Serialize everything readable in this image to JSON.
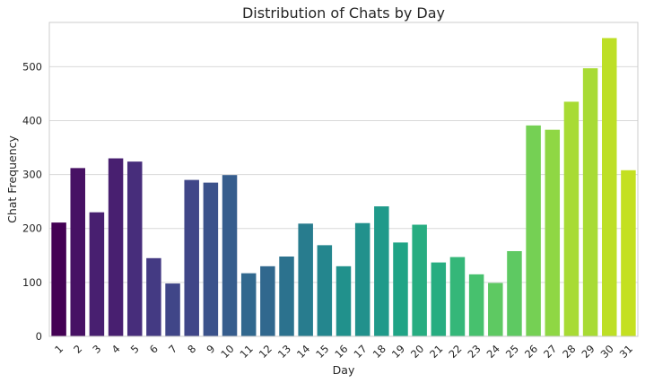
{
  "chart_data": {
    "type": "bar",
    "title": "Distribution of Chats by Day",
    "xlabel": "Day",
    "ylabel": "Chat Frequency",
    "categories": [
      "1",
      "2",
      "3",
      "4",
      "5",
      "6",
      "7",
      "8",
      "9",
      "10",
      "11",
      "12",
      "13",
      "14",
      "15",
      "16",
      "17",
      "18",
      "19",
      "20",
      "21",
      "22",
      "23",
      "24",
      "25",
      "26",
      "27",
      "28",
      "29",
      "30",
      "31"
    ],
    "values": [
      211,
      312,
      230,
      330,
      324,
      145,
      98,
      290,
      285,
      299,
      117,
      130,
      148,
      209,
      169,
      130,
      210,
      241,
      174,
      207,
      137,
      147,
      115,
      99,
      158,
      391,
      383,
      435,
      497,
      553,
      308
    ],
    "yticks": [
      "0",
      "100",
      "200",
      "300",
      "400",
      "500"
    ],
    "ylim": [
      0,
      582
    ],
    "grid": true,
    "palette": "viridis",
    "colors": [
      "#440154",
      "#471164",
      "#481f70",
      "#472d7b",
      "#443a83",
      "#404688",
      "#3b528b",
      "#365d8d",
      "#31688e",
      "#2c728e",
      "#287c8e",
      "#24868e",
      "#21918c",
      "#1f9a8a",
      "#20a486",
      "#27ad81",
      "#35b779",
      "#47c16e",
      "#5ec962",
      "#75d054",
      "#8fd744",
      "#a8db34",
      "#bddf26",
      "#c4e021"
    ]
  }
}
